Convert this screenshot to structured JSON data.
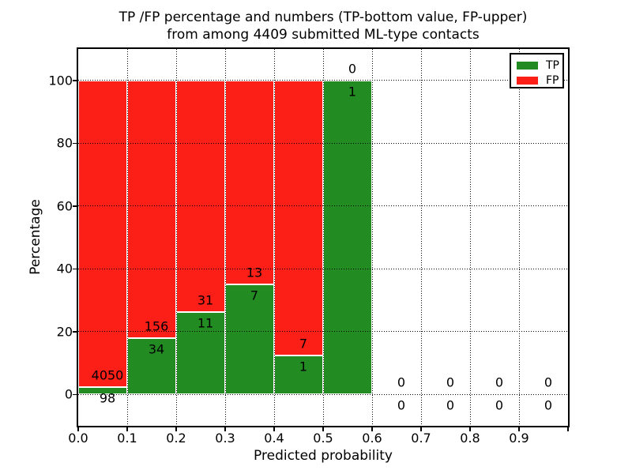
{
  "chart_data": {
    "type": "bar",
    "stacked": true,
    "title_line1": "TP /FP percentage and numbers (TP-bottom value, FP-upper)",
    "title_line2": "from among 4409 submitted ML-type contacts",
    "xlabel": "Predicted probability",
    "ylabel": "Percentage",
    "xlim": [
      0.0,
      1.0
    ],
    "ylim": [
      -10,
      110
    ],
    "bin_width": 0.1,
    "grid": "dotted",
    "legend_position": "upper right",
    "x_tick_labels": [
      "0.0",
      "0.1",
      "0.2",
      "0.3",
      "0.4",
      "0.5",
      "0.6",
      "0.7",
      "0.8",
      "0.9"
    ],
    "y_tick_values": [
      0,
      20,
      40,
      60,
      80,
      100
    ],
    "y_tick_labels": [
      "0",
      "20",
      "40",
      "60",
      "80",
      "100"
    ],
    "total_contacts": 4409,
    "bins": [
      {
        "range": "0.0-0.1",
        "tp": 98,
        "fp": 4050,
        "tp_pct": 2.36,
        "fp_pct": 97.64
      },
      {
        "range": "0.1-0.2",
        "tp": 34,
        "fp": 156,
        "tp_pct": 17.89,
        "fp_pct": 82.11
      },
      {
        "range": "0.2-0.3",
        "tp": 11,
        "fp": 31,
        "tp_pct": 26.19,
        "fp_pct": 73.81
      },
      {
        "range": "0.3-0.4",
        "tp": 7,
        "fp": 13,
        "tp_pct": 35.0,
        "fp_pct": 65.0
      },
      {
        "range": "0.4-0.5",
        "tp": 1,
        "fp": 7,
        "tp_pct": 12.5,
        "fp_pct": 87.5
      },
      {
        "range": "0.5-0.6",
        "tp": 1,
        "fp": 0,
        "tp_pct": 100.0,
        "fp_pct": 0.0
      },
      {
        "range": "0.6-0.7",
        "tp": 0,
        "fp": 0,
        "tp_pct": 0.0,
        "fp_pct": 0.0
      },
      {
        "range": "0.7-0.8",
        "tp": 0,
        "fp": 0,
        "tp_pct": 0.0,
        "fp_pct": 0.0
      },
      {
        "range": "0.8-0.9",
        "tp": 0,
        "fp": 0,
        "tp_pct": 0.0,
        "fp_pct": 0.0
      },
      {
        "range": "0.9-1.0",
        "tp": 0,
        "fp": 0,
        "tp_pct": 0.0,
        "fp_pct": 0.0
      }
    ],
    "legend": [
      {
        "label": "TP",
        "color": "#228b22"
      },
      {
        "label": "FP",
        "color": "#fb1f18"
      }
    ],
    "colors": {
      "tp": "#228b22",
      "fp": "#fb1f18",
      "bar_edge": "#ffffff",
      "grid": "#000000",
      "text": "#000000",
      "background": "#ffffff"
    }
  }
}
